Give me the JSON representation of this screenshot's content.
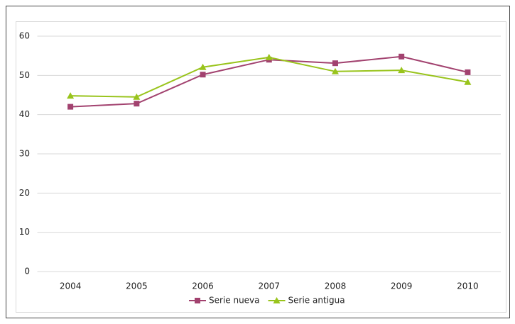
{
  "chart_data": {
    "type": "line",
    "categories": [
      "2004",
      "2005",
      "2006",
      "2007",
      "2008",
      "2009",
      "2010"
    ],
    "series": [
      {
        "name": "Serie nueva",
        "color": "#a2426f",
        "marker": "square",
        "values": [
          42.0,
          42.8,
          50.2,
          54.0,
          53.1,
          54.8,
          50.8
        ]
      },
      {
        "name": "Serie antigua",
        "color": "#99c41c",
        "marker": "triangle",
        "values": [
          44.8,
          44.5,
          52.1,
          54.6,
          51.0,
          51.3,
          48.3
        ]
      }
    ],
    "ylim": [
      0,
      60
    ],
    "yticks": [
      0,
      10,
      20,
      30,
      40,
      50,
      60
    ],
    "grid": true,
    "legend": "bottom"
  }
}
